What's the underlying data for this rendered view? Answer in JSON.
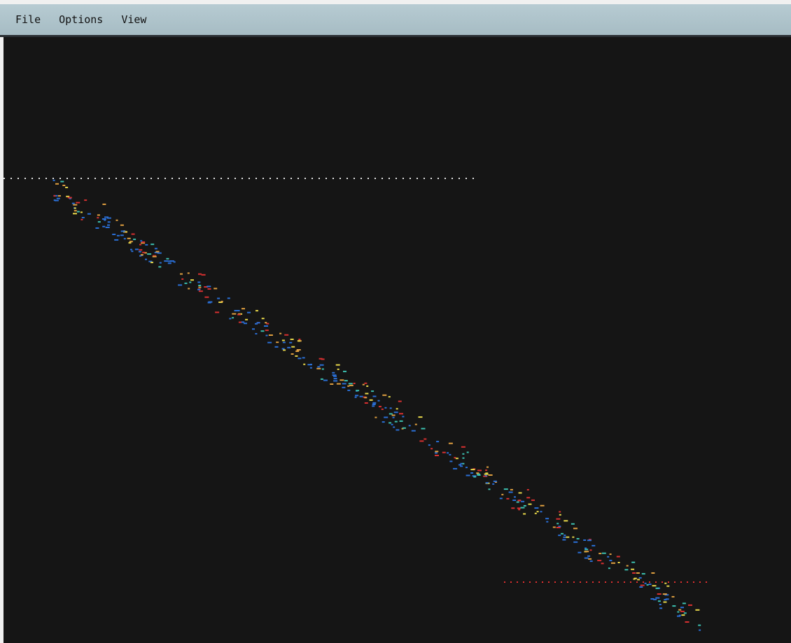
{
  "menu": {
    "items": [
      "File",
      "Options",
      "View"
    ]
  }
}
